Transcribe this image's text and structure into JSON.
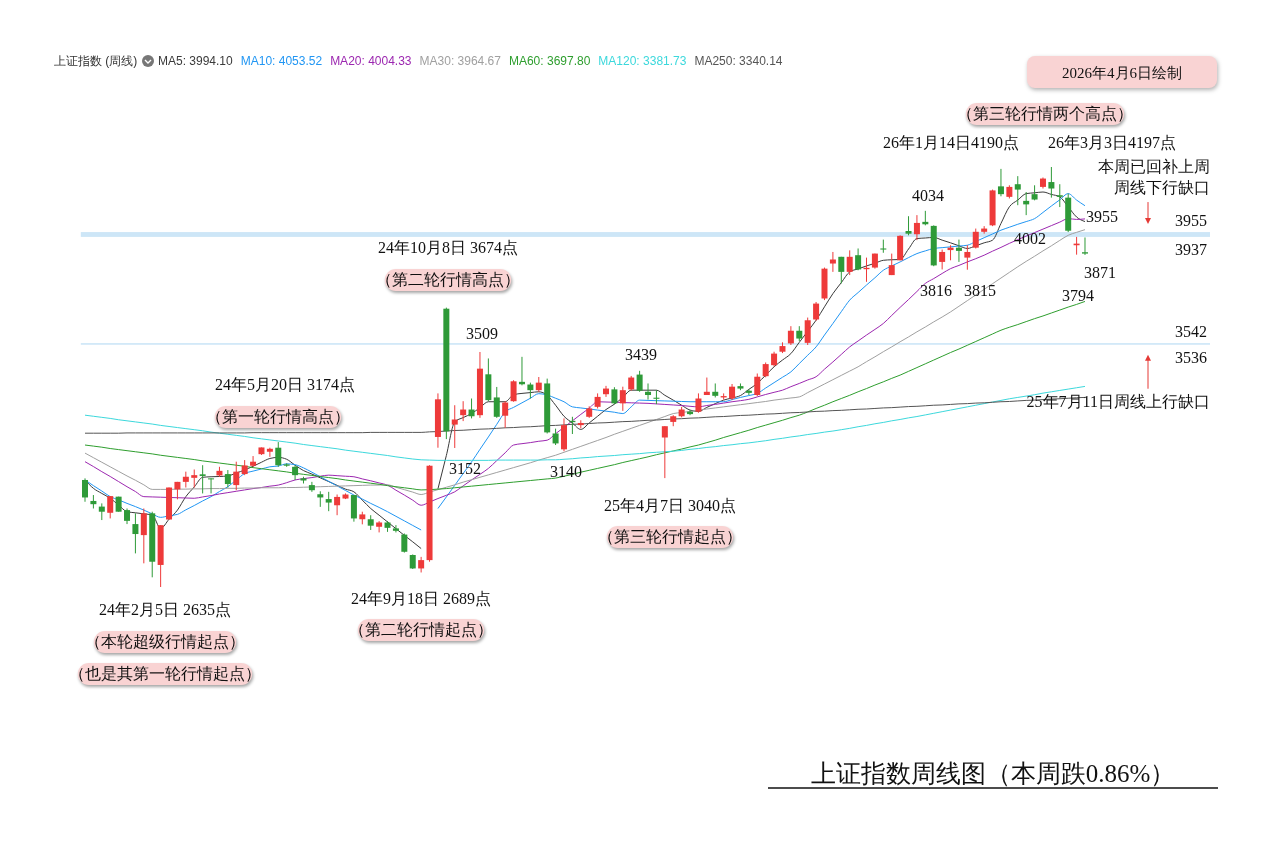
{
  "chart_data": {
    "type": "candlestick",
    "title": "上证指数周线图（本周跌0.86%）",
    "legend_title": "上证指数 (周线)",
    "legend": "top left",
    "categories": [
      null,
      null,
      null,
      null,
      null,
      null,
      null,
      null,
      null,
      null,
      null,
      null,
      null,
      null,
      null,
      null,
      null,
      null,
      null,
      null,
      null,
      null,
      null,
      null,
      null,
      null,
      null,
      null,
      null,
      null,
      null,
      null,
      null,
      null,
      null,
      null,
      null,
      null,
      null,
      null,
      null,
      null,
      null,
      null,
      null,
      null,
      null,
      null,
      null,
      null,
      null,
      null,
      null,
      null,
      null,
      null,
      null,
      null,
      null,
      null,
      null,
      null,
      null,
      null,
      null,
      null,
      null,
      null,
      null,
      null,
      null,
      null,
      null,
      null,
      null,
      null,
      null,
      null,
      null,
      null,
      null,
      null,
      null,
      null,
      null,
      null,
      null,
      null,
      null,
      null,
      null,
      null,
      null,
      null,
      null,
      null,
      null,
      null,
      null,
      null,
      null,
      null,
      null,
      null,
      null,
      null,
      null,
      null,
      null,
      null,
      null,
      null,
      null,
      null,
      null,
      null,
      null,
      null,
      null,
      null
    ],
    "ohlc": [
      [
        3033,
        3039,
        2952,
        2968
      ],
      [
        2955,
        2977,
        2927,
        2943
      ],
      [
        2934,
        2946,
        2884,
        2915
      ],
      [
        2911,
        2973,
        2890,
        2973
      ],
      [
        2971,
        2971,
        2915,
        2915
      ],
      [
        2921,
        2927,
        2869,
        2881
      ],
      [
        2869,
        2909,
        2760,
        2832
      ],
      [
        2828,
        2927,
        2723,
        2909
      ],
      [
        2909,
        2915,
        2671,
        2729
      ],
      [
        2717,
        2865,
        2635,
        2865
      ],
      [
        2886,
        3005,
        2886,
        3005
      ],
      [
        2998,
        3026,
        2961,
        3026
      ],
      [
        3026,
        3064,
        3005,
        3045
      ],
      [
        3041,
        3072,
        3005,
        3051
      ],
      [
        3054,
        3088,
        2983,
        3048
      ],
      [
        3039,
        3039,
        2983,
        3036
      ],
      [
        3050,
        3082,
        3045,
        3067
      ],
      [
        3055,
        3070,
        3005,
        3018
      ],
      [
        3014,
        3101,
        2995,
        3064
      ],
      [
        3055,
        3107,
        3051,
        3087
      ],
      [
        3086,
        3122,
        3082,
        3101
      ],
      [
        3129,
        3154,
        3126,
        3154
      ],
      [
        3138,
        3153,
        3119,
        3149
      ],
      [
        3153,
        3174,
        3082,
        3088
      ],
      [
        3091,
        3095,
        3082,
        3086
      ],
      [
        3082,
        3088,
        3033,
        3051
      ],
      [
        3039,
        3045,
        3020,
        3031
      ],
      [
        3014,
        3026,
        2989,
        2995
      ],
      [
        2980,
        2991,
        2933,
        2968
      ],
      [
        2962,
        2989,
        2917,
        2949
      ],
      [
        2939,
        2979,
        2902,
        2970
      ],
      [
        2964,
        2983,
        2962,
        2979
      ],
      [
        2977,
        2977,
        2878,
        2890
      ],
      [
        2887,
        2915,
        2868,
        2905
      ],
      [
        2887,
        2902,
        2847,
        2863
      ],
      [
        2859,
        2880,
        2838,
        2875
      ],
      [
        2875,
        2880,
        2840,
        2855
      ],
      [
        2853,
        2865,
        2838,
        2844
      ],
      [
        2830,
        2834,
        2763,
        2766
      ],
      [
        2754,
        2756,
        2702,
        2704
      ],
      [
        2704,
        2747,
        2689,
        2735
      ],
      [
        2735,
        3088,
        2729,
        3086
      ],
      [
        3193,
        3355,
        3153,
        3333
      ],
      [
        3670,
        3674,
        3185,
        3214
      ],
      [
        3239,
        3311,
        3152,
        3258
      ],
      [
        3274,
        3326,
        3252,
        3295
      ],
      [
        3295,
        3336,
        3262,
        3270
      ],
      [
        3274,
        3509,
        3264,
        3447
      ],
      [
        3426,
        3485,
        3326,
        3330
      ],
      [
        3340,
        3379,
        3264,
        3268
      ],
      [
        3272,
        3326,
        3227,
        3321
      ],
      [
        3326,
        3404,
        3324,
        3400
      ],
      [
        3398,
        3491,
        3385,
        3389
      ],
      [
        3388,
        3395,
        3336,
        3367
      ],
      [
        3367,
        3416,
        3361,
        3395
      ],
      [
        3392,
        3410,
        3206,
        3210
      ],
      [
        3206,
        3224,
        3163,
        3169
      ],
      [
        3147,
        3262,
        3140,
        3237
      ],
      [
        3253,
        3268,
        3204,
        3248
      ],
      [
        3237,
        3255,
        3225,
        3245
      ],
      [
        3268,
        3307,
        3264,
        3299
      ],
      [
        3305,
        3355,
        3299,
        3342
      ],
      [
        3352,
        3383,
        3342,
        3373
      ],
      [
        3370,
        3378,
        3315,
        3318
      ],
      [
        3318,
        3380,
        3290,
        3367
      ],
      [
        3370,
        3420,
        3365,
        3414
      ],
      [
        3425,
        3439,
        3361,
        3365
      ],
      [
        3361,
        3392,
        3332,
        3349
      ],
      [
        3339,
        3367,
        3315,
        3335
      ],
      [
        3191,
        3233,
        3040,
        3233
      ],
      [
        3249,
        3274,
        3233,
        3270
      ],
      [
        3270,
        3305,
        3266,
        3295
      ],
      [
        3287,
        3293,
        3274,
        3278
      ],
      [
        3287,
        3355,
        3283,
        3336
      ],
      [
        3349,
        3414,
        3349,
        3361
      ],
      [
        3361,
        3392,
        3340,
        3346
      ],
      [
        3340,
        3355,
        3332,
        3345
      ],
      [
        3336,
        3390,
        3330,
        3380
      ],
      [
        3382,
        3392,
        3367,
        3373
      ],
      [
        3365,
        3370,
        3349,
        3357
      ],
      [
        3349,
        3429,
        3345,
        3417
      ],
      [
        3419,
        3470,
        3415,
        3464
      ],
      [
        3460,
        3510,
        3455,
        3503
      ],
      [
        3510,
        3545,
        3505,
        3531
      ],
      [
        3541,
        3605,
        3535,
        3588
      ],
      [
        3588,
        3605,
        3550,
        3559
      ],
      [
        3543,
        3637,
        3535,
        3627
      ],
      [
        3630,
        3695,
        3625,
        3689
      ],
      [
        3708,
        3823,
        3702,
        3819
      ],
      [
        3838,
        3881,
        3807,
        3853
      ],
      [
        3863,
        3863,
        3764,
        3807
      ],
      [
        3807,
        3887,
        3795,
        3863
      ],
      [
        3869,
        3894,
        3813,
        3816
      ],
      [
        3817,
        3860,
        3770,
        3822
      ],
      [
        3823,
        3875,
        3819,
        3875
      ],
      [
        3894,
        3927,
        3878,
        3890
      ],
      [
        3795,
        3875,
        3795,
        3832
      ],
      [
        3850,
        3943,
        3850,
        3941
      ],
      [
        3959,
        4014,
        3943,
        3949
      ],
      [
        3947,
        4018,
        3925,
        3989
      ],
      [
        3993,
        4034,
        3980,
        3984
      ],
      [
        3978,
        3980,
        3828,
        3831
      ],
      [
        3844,
        3890,
        3816,
        3881
      ],
      [
        3888,
        3906,
        3850,
        3897
      ],
      [
        3897,
        3927,
        3844,
        3885
      ],
      [
        3860,
        3906,
        3815,
        3881
      ],
      [
        3897,
        3968,
        3894,
        3956
      ],
      [
        3956,
        3977,
        3949,
        3968
      ],
      [
        3980,
        4113,
        3977,
        4110
      ],
      [
        4125,
        4190,
        4088,
        4096
      ],
      [
        4086,
        4129,
        4080,
        4123
      ],
      [
        4133,
        4163,
        4055,
        4113
      ],
      [
        4071,
        4104,
        4018,
        4058
      ],
      [
        4096,
        4129,
        4073,
        4076
      ],
      [
        4123,
        4158,
        4117,
        4154
      ],
      [
        4141,
        4197,
        4083,
        4117
      ],
      [
        4092,
        4133,
        4048,
        4086
      ],
      [
        4083,
        4098,
        3955,
        3960
      ],
      [
        3906,
        3937,
        3871,
        3912
      ],
      [
        3880,
        3935,
        3870,
        3875
      ]
    ],
    "series": [
      {
        "type": "line",
        "name": "MA5: 3994.10",
        "color": "#3a3a3a",
        "values": [
          3033,
          3002,
          2983,
          2965,
          2940,
          2915,
          2911,
          2907,
          2903,
          2853,
          2887,
          2921,
          2971,
          3007,
          3043,
          3045,
          3046,
          3048,
          3059,
          3070,
          3084,
          3099,
          3113,
          3117,
          3110,
          3088,
          3068,
          3055,
          3041,
          3027,
          3013,
          2999,
          2989,
          2958,
          2927,
          2902,
          2877,
          2852,
          2827,
          2803,
          2778,
          null,
          3000,
          3124,
          3249,
          3265,
          3280,
          3302,
          3324,
          3324,
          3324,
          3350,
          3355,
          3358,
          3361,
          3348,
          3311,
          3270,
          3245,
          3221,
          3245,
          3270,
          3295,
          3315,
          3340,
          3367,
          3367,
          3367,
          3367,
          3348,
          3330,
          3311,
          3293,
          3288,
          3303,
          3317,
          3330,
          3338,
          3347,
          3370,
          3392,
          3423,
          3454,
          3479,
          3503,
          3545,
          3586,
          3627,
          3677,
          3726,
          3767,
          3807,
          3818,
          3829,
          3839,
          3850,
          3852,
          3853,
          3892,
          3931,
          3933,
          3935,
          3925,
          3915,
          3904,
          3894,
          3904,
          3915,
          3925,
          3987,
          4049,
          4074,
          4098,
          4101,
          4104,
          4095,
          4086,
          4049,
          4011,
          3994
        ]
      },
      {
        "type": "line",
        "name": "MA10: 4053.52",
        "color": "#2196f3",
        "values": [
          3033,
          3012,
          2992,
          2971,
          2959,
          2946,
          2934,
          2921,
          2907,
          2894,
          2900,
          2905,
          2922,
          2938,
          2955,
          2971,
          2990,
          3008,
          3033,
          3057,
          3066,
          3074,
          3082,
          3085,
          3093,
          3090,
          3078,
          3062,
          3045,
          3028,
          3011,
          2994,
          2977,
          2962,
          2946,
          2931,
          2915,
          2898,
          2881,
          2864,
          2847,
          null,
          2927,
          2970,
          3013,
          3057,
          3100,
          3147,
          3193,
          3240,
          3286,
          3303,
          3320,
          3337,
          3354,
          3349,
          3337,
          3324,
          3305,
          3301,
          3297,
          3293,
          3289,
          3285,
          3280,
          3305,
          3330,
          3329,
          3328,
          3327,
          3326,
          3325,
          3324,
          3324,
          3324,
          3324,
          3324,
          3332,
          3340,
          3347,
          3355,
          3375,
          3395,
          3415,
          3435,
          3466,
          3497,
          3528,
          3572,
          3615,
          3659,
          3702,
          3730,
          3758,
          3785,
          3813,
          3829,
          3844,
          3860,
          3875,
          3885,
          3894,
          3897,
          3900,
          3903,
          3906,
          3920,
          3934,
          3948,
          3962,
          3973,
          3984,
          3994,
          4005,
          4028,
          4052,
          4075,
          4098,
          4074,
          4053
        ]
      },
      {
        "type": "line",
        "name": "MA20: 4004.33",
        "color": "#9c27b0",
        "values": [
          3101,
          3083,
          3064,
          3046,
          3027,
          3008,
          2990,
          2971,
          2970,
          2969,
          2968,
          2967,
          2966,
          2965,
          2970,
          2975,
          2981,
          2986,
          2991,
          2996,
          3001,
          3005,
          3010,
          3014,
          3023,
          3033,
          3038,
          3042,
          3047,
          3051,
          3049,
          3047,
          3045,
          3037,
          3030,
          3022,
          3014,
          2995,
          2977,
          2958,
          2939,
          2951,
          2964,
          2976,
          2989,
          3011,
          3033,
          3054,
          3076,
          3105,
          3134,
          3163,
          3168,
          3172,
          3177,
          3181,
          3205,
          3229,
          3253,
          3277,
          3300,
          3324,
          3323,
          3322,
          3321,
          3320,
          3319,
          3318,
          3316,
          3314,
          3312,
          3310,
          3307,
          3305,
          3310,
          3314,
          3319,
          3324,
          3328,
          3333,
          3342,
          3351,
          3359,
          3367,
          3380,
          3392,
          3405,
          3417,
          3445,
          3472,
          3500,
          3528,
          3550,
          3572,
          3593,
          3615,
          3645,
          3675,
          3704,
          3734,
          3764,
          3782,
          3801,
          3819,
          3831,
          3844,
          3856,
          3869,
          3884,
          3898,
          3913,
          3927,
          3940,
          3953,
          3966,
          3979,
          3992,
          4005,
          4002,
          4004
        ]
      },
      {
        "type": "line",
        "name": "MA30: 3964.67",
        "color": "#a0a0a0",
        "values": [
          3133,
          3116,
          3099,
          3082,
          3065,
          3048,
          3032,
          3015,
          2998,
          2998,
          2998,
          2999,
          2999,
          3000,
          3000,
          3001,
          3001,
          3002,
          3002,
          3003,
          3003,
          3004,
          3004,
          3004,
          3005,
          3005,
          3006,
          3007,
          3008,
          3009,
          3010,
          3011,
          3012,
          3013,
          3014,
          3014,
          3015,
          3006,
          2997,
          2988,
          2979,
          2988,
          2997,
          3006,
          3015,
          3025,
          3034,
          3043,
          3052,
          3061,
          3070,
          3079,
          3088,
          3097,
          3107,
          3116,
          3125,
          3136,
          3147,
          3158,
          3169,
          3180,
          3191,
          3203,
          3214,
          3225,
          3236,
          3247,
          3258,
          3269,
          3280,
          3284,
          3288,
          3292,
          3297,
          3301,
          3305,
          3309,
          3313,
          3317,
          3321,
          3325,
          3330,
          3334,
          3338,
          3342,
          3358,
          3374,
          3390,
          3406,
          3422,
          3438,
          3454,
          3473,
          3491,
          3510,
          3528,
          3547,
          3565,
          3584,
          3602,
          3621,
          3639,
          3658,
          3679,
          3700,
          3721,
          3742,
          3763,
          3784,
          3805,
          3826,
          3846,
          3865,
          3885,
          3904,
          3924,
          3943,
          3954,
          3964
        ]
      },
      {
        "type": "line",
        "name": "MA60: 3697.80",
        "color": "#2e9e2e",
        "values": [
          3163,
          3159,
          3155,
          3150,
          3146,
          3142,
          3138,
          3134,
          3130,
          3125,
          3121,
          3117,
          3113,
          3109,
          3104,
          3100,
          3096,
          3092,
          3088,
          3084,
          3079,
          3075,
          3071,
          3067,
          3063,
          3058,
          3054,
          3050,
          3046,
          3042,
          3038,
          3033,
          3029,
          3025,
          3021,
          3017,
          3012,
          3008,
          3004,
          3000,
          2996,
          2997,
          2999,
          3001,
          3004,
          3007,
          3010,
          3013,
          3016,
          3019,
          3022,
          3025,
          3028,
          3031,
          3034,
          3037,
          3040,
          3047,
          3054,
          3062,
          3069,
          3076,
          3083,
          3090,
          3098,
          3105,
          3112,
          3119,
          3127,
          3134,
          3141,
          3148,
          3156,
          3163,
          3172,
          3181,
          3191,
          3200,
          3209,
          3218,
          3228,
          3237,
          3246,
          3255,
          3265,
          3274,
          3286,
          3299,
          3311,
          3324,
          3336,
          3348,
          3361,
          3373,
          3386,
          3398,
          3411,
          3423,
          3437,
          3451,
          3465,
          3479,
          3493,
          3507,
          3520,
          3534,
          3548,
          3562,
          3576,
          3590,
          3601,
          3611,
          3622,
          3633,
          3643,
          3654,
          3665,
          3676,
          3686,
          3697
        ]
      },
      {
        "type": "line",
        "name": "MA120: 3381.73",
        "color": "#3cd8dc",
        "values": [
          3274,
          3270,
          3266,
          3262,
          3257,
          3253,
          3249,
          3245,
          3241,
          3236,
          3232,
          3228,
          3224,
          3220,
          3216,
          3211,
          3207,
          3203,
          3199,
          3195,
          3190,
          3186,
          3182,
          3178,
          3174,
          3170,
          3165,
          3161,
          3157,
          3153,
          3149,
          3144,
          3140,
          3136,
          3132,
          3128,
          3124,
          3119,
          3115,
          3111,
          3108,
          3107,
          3106,
          3106,
          3106,
          3106,
          3106,
          3106,
          3106,
          3107,
          3107,
          3107,
          3107,
          3107,
          3107,
          3108,
          3108,
          3110,
          3112,
          3115,
          3117,
          3120,
          3122,
          3124,
          3127,
          3129,
          3131,
          3134,
          3136,
          3138,
          3140,
          3143,
          3147,
          3150,
          3154,
          3157,
          3161,
          3164,
          3168,
          3171,
          3175,
          3179,
          3184,
          3188,
          3193,
          3197,
          3202,
          3206,
          3211,
          3215,
          3220,
          3225,
          3231,
          3236,
          3242,
          3247,
          3253,
          3258,
          3264,
          3269,
          3275,
          3281,
          3287,
          3293,
          3299,
          3305,
          3311,
          3317,
          3323,
          3329,
          3335,
          3340,
          3345,
          3350,
          3356,
          3361,
          3366,
          3371,
          3376,
          3381
        ]
      },
      {
        "type": "line",
        "name": "MA250: 3340.14",
        "color": "#555555",
        "values": [
          3207,
          3207,
          3207,
          3207,
          3207,
          3208,
          3208,
          3208,
          3208,
          3208,
          3208,
          3208,
          3208,
          3208,
          3208,
          3208,
          3208,
          3208,
          3208,
          3208,
          3209,
          3209,
          3209,
          3209,
          3209,
          3209,
          3209,
          3209,
          3209,
          3209,
          3209,
          3209,
          3209,
          3209,
          3210,
          3210,
          3210,
          3210,
          3210,
          3210,
          3210,
          3212,
          3213,
          3215,
          3217,
          3218,
          3220,
          3222,
          3223,
          3225,
          3227,
          3228,
          3230,
          3231,
          3233,
          3235,
          3236,
          3238,
          3240,
          3241,
          3243,
          3245,
          3246,
          3248,
          3250,
          3251,
          3253,
          3255,
          3256,
          3258,
          3260,
          3261,
          3263,
          3264,
          3266,
          3268,
          3269,
          3271,
          3273,
          3274,
          3276,
          3278,
          3279,
          3281,
          3283,
          3284,
          3286,
          3288,
          3289,
          3291,
          3292,
          3294,
          3296,
          3297,
          3299,
          3301,
          3302,
          3304,
          3306,
          3307,
          3309,
          3311,
          3312,
          3314,
          3316,
          3317,
          3319,
          3320,
          3322,
          3324,
          3325,
          3327,
          3329,
          3330,
          3332,
          3334,
          3335,
          3337,
          3339,
          3340
        ]
      }
    ],
    "bands": [
      {
        "axis": "y",
        "from": 3937,
        "to": 3955,
        "color": "#cde6f7"
      },
      {
        "axis": "y",
        "from": 3536,
        "to": 3542,
        "color": "#cde6f7"
      }
    ],
    "annotations": [
      "2026年4月6日绘制",
      "（第三轮行情两个高点）",
      "26年1月14日4190点",
      "26年3月3日4197点",
      "本周已回补上周",
      "周线下行缺口",
      "4034",
      "3955",
      "4002",
      "3871",
      "3816",
      "3815",
      "3794",
      "3955",
      "3937",
      "3542",
      "3536",
      "25年7月11日周线上行缺口",
      "24年10月8日 3674点",
      "（第二轮行情高点）",
      "3509",
      "3439",
      "24年5月20日 3174点",
      "（第一轮行情高点）",
      "3152",
      "3140",
      "25年4月7日 3040点",
      "（第三轮行情起点）",
      "24年2月5日 2635点",
      "（本轮超级行情起点）",
      "（也是其第一轮行情起点）",
      "24年9月18日 2689点",
      "（第二轮行情起点）"
    ]
  }
}
